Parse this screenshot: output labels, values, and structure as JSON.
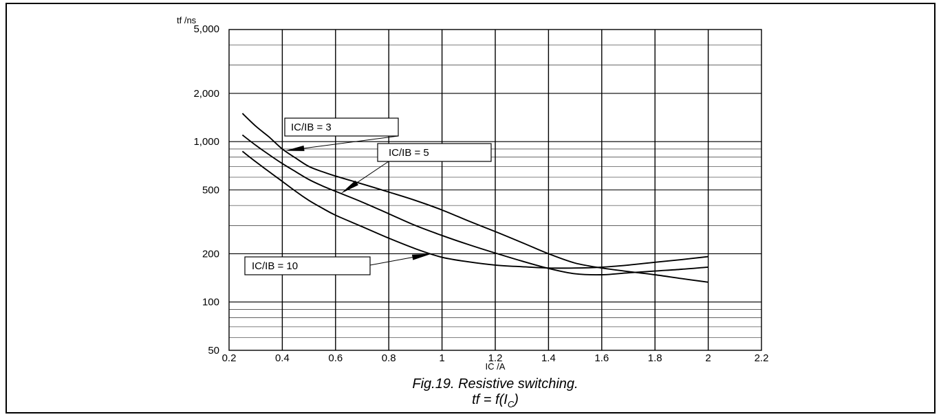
{
  "chart_data": {
    "type": "line",
    "title": "Fig.19.  Resistive switching.",
    "subtitle_prefix": "tf = f(I",
    "subtitle_sub": "C",
    "subtitle_suffix": ")",
    "xlabel": "IC /A",
    "ylabel": "tf /ns",
    "xlim": [
      0.2,
      2.2
    ],
    "ylim": [
      50,
      5000
    ],
    "yscale": "log",
    "xticks": [
      0.2,
      0.4,
      0.6,
      0.8,
      1,
      1.2,
      1.4,
      1.6,
      1.8,
      2,
      2.2
    ],
    "xtick_labels": [
      "0.2",
      "0.4",
      "0.6",
      "0.8",
      "1",
      "1.2",
      "1.4",
      "1.6",
      "1.8",
      "2",
      "2.2"
    ],
    "yticks": [
      50,
      100,
      200,
      500,
      1000,
      2000,
      5000
    ],
    "ytick_labels": [
      "50",
      "100",
      "200",
      "500",
      "1,000",
      "2,000",
      "5,000"
    ],
    "grid": true,
    "series": [
      {
        "name": "IC/IB = 3",
        "x": [
          0.25,
          0.3,
          0.35,
          0.4,
          0.45,
          0.5,
          0.55,
          0.6,
          0.7,
          0.8,
          0.9,
          1.0,
          1.1,
          1.2,
          1.3,
          1.4,
          1.5,
          1.6,
          1.7,
          1.8,
          1.9,
          2.0
        ],
        "y": [
          1500,
          1250,
          1070,
          900,
          790,
          700,
          650,
          610,
          545,
          485,
          430,
          375,
          320,
          275,
          235,
          200,
          175,
          163,
          155,
          148,
          140,
          133
        ]
      },
      {
        "name": "IC/IB = 5",
        "x": [
          0.25,
          0.3,
          0.35,
          0.4,
          0.45,
          0.5,
          0.55,
          0.6,
          0.7,
          0.8,
          0.9,
          1.0,
          1.1,
          1.2,
          1.3,
          1.4,
          1.5,
          1.6,
          1.7,
          1.8,
          1.9,
          2.0
        ],
        "y": [
          1100,
          950,
          830,
          730,
          650,
          580,
          530,
          490,
          420,
          355,
          300,
          260,
          228,
          202,
          180,
          162,
          150,
          148,
          152,
          156,
          160,
          165
        ]
      },
      {
        "name": "IC/IB = 10",
        "x": [
          0.25,
          0.3,
          0.35,
          0.4,
          0.45,
          0.5,
          0.55,
          0.6,
          0.7,
          0.8,
          0.9,
          1.0,
          1.1,
          1.2,
          1.3,
          1.4,
          1.5,
          1.6,
          1.7,
          1.8,
          1.9,
          2.0
        ],
        "y": [
          870,
          750,
          650,
          565,
          490,
          430,
          385,
          348,
          295,
          250,
          215,
          190,
          178,
          170,
          166,
          163,
          163,
          165,
          170,
          177,
          184,
          192
        ]
      }
    ],
    "annotations": [
      {
        "text": "IC/IB = 3",
        "series": 0,
        "arrow_x": 0.41
      },
      {
        "text": "IC/IB = 5",
        "series": 1,
        "arrow_x": 0.62
      },
      {
        "text": "IC/IB = 10",
        "series": 2,
        "arrow_x": 0.96
      }
    ]
  }
}
